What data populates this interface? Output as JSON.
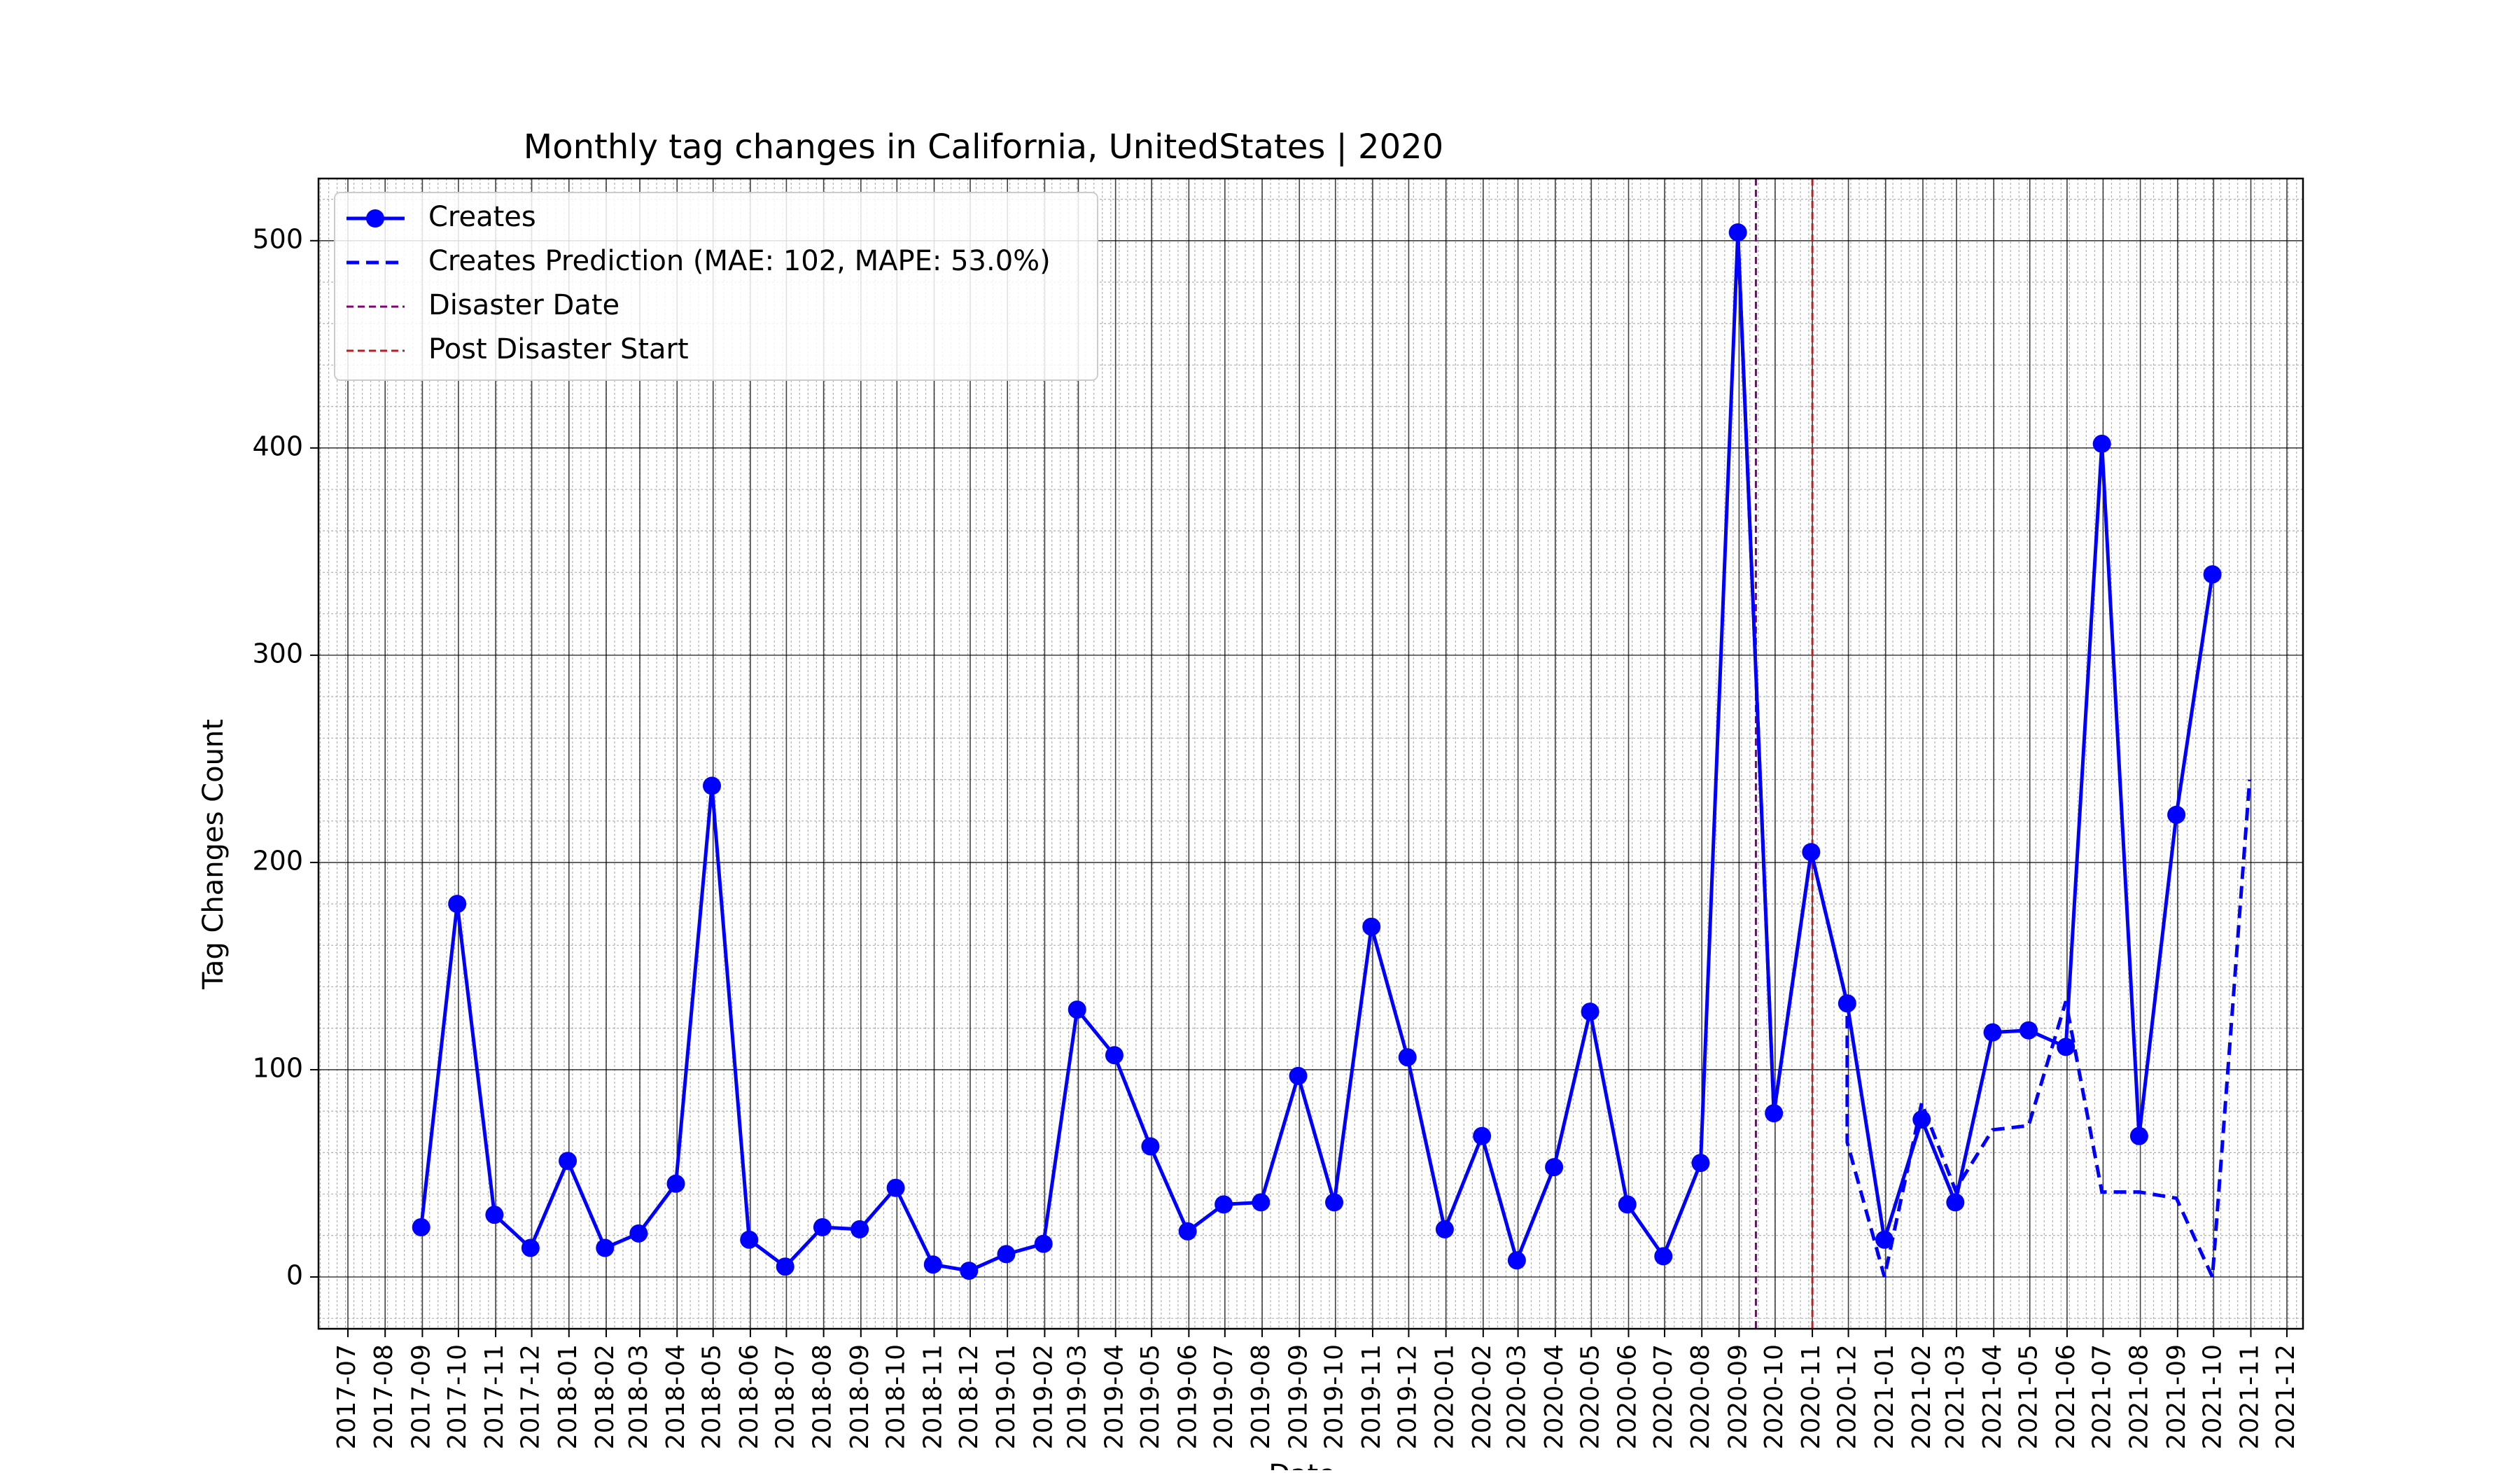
{
  "chart_data": {
    "type": "line",
    "title": "Monthly tag changes in California, UnitedStates | 2020",
    "xlabel": "Date",
    "ylabel": "Tag Changes Count",
    "ylim": [
      -25,
      530
    ],
    "xlim": [
      "2017-07",
      "2021-12"
    ],
    "yticks": [
      0,
      100,
      200,
      300,
      400,
      500
    ],
    "xticks": [
      "2017-07",
      "2017-08",
      "2017-09",
      "2017-10",
      "2017-11",
      "2017-12",
      "2018-01",
      "2018-02",
      "2018-03",
      "2018-04",
      "2018-05",
      "2018-06",
      "2018-07",
      "2018-08",
      "2018-09",
      "2018-10",
      "2018-11",
      "2018-12",
      "2019-01",
      "2019-02",
      "2019-03",
      "2019-04",
      "2019-05",
      "2019-06",
      "2019-07",
      "2019-08",
      "2019-09",
      "2019-10",
      "2019-11",
      "2019-12",
      "2020-01",
      "2020-02",
      "2020-03",
      "2020-04",
      "2020-05",
      "2020-06",
      "2020-07",
      "2020-08",
      "2020-09",
      "2020-10",
      "2020-11",
      "2020-12",
      "2021-01",
      "2021-02",
      "2021-03",
      "2021-04",
      "2021-05",
      "2021-06",
      "2021-07",
      "2021-08",
      "2021-09",
      "2021-10",
      "2021-11",
      "2021-12"
    ],
    "grid": true,
    "legend_position": "top-left",
    "series": [
      {
        "name": "Creates",
        "style": "solid-with-markers",
        "color": "#0000ff",
        "x": [
          "2017-08-31",
          "2017-09-30",
          "2017-10-31",
          "2017-11-30",
          "2017-12-31",
          "2018-01-31",
          "2018-02-28",
          "2018-03-31",
          "2018-04-30",
          "2018-05-31",
          "2018-06-30",
          "2018-07-31",
          "2018-08-31",
          "2018-09-30",
          "2018-10-31",
          "2018-11-30",
          "2018-12-31",
          "2019-01-31",
          "2019-02-28",
          "2019-03-31",
          "2019-04-30",
          "2019-05-31",
          "2019-06-30",
          "2019-07-31",
          "2019-08-31",
          "2019-09-30",
          "2019-10-31",
          "2019-11-30",
          "2019-12-31",
          "2020-01-31",
          "2020-02-29",
          "2020-03-31",
          "2020-04-30",
          "2020-05-31",
          "2020-06-30",
          "2020-07-31",
          "2020-08-31",
          "2020-09-30",
          "2020-10-31",
          "2020-11-30",
          "2020-12-31",
          "2021-01-31",
          "2021-02-28",
          "2021-03-31",
          "2021-04-30",
          "2021-05-31",
          "2021-06-30",
          "2021-07-31",
          "2021-08-31",
          "2021-09-30"
        ],
        "values": [
          24,
          180,
          30,
          14,
          56,
          14,
          21,
          45,
          237,
          18,
          5,
          24,
          23,
          43,
          6,
          3,
          11,
          16,
          129,
          107,
          63,
          22,
          35,
          36,
          97,
          36,
          169,
          106,
          23,
          68,
          8,
          53,
          128,
          35,
          10,
          55,
          504,
          79,
          205,
          132,
          18,
          76,
          36,
          118,
          119,
          111,
          402,
          68,
          223,
          339
        ]
      },
      {
        "name": "Creates Prediction (MAE: 102, MAPE: 53.0%)",
        "style": "dashed",
        "color": "#0000ff",
        "x": [
          "2020-08-31",
          "2020-09-30",
          "2020-10-31",
          "2020-11-30",
          "2020-12-31",
          "2021-01-31",
          "2021-02-28",
          "2021-03-31",
          "2021-04-30",
          "2021-05-31",
          "2021-06-30",
          "2021-07-31",
          "2021-08-31",
          "2021-09-30",
          "2021-10-31"
        ],
        "values": [
          504,
          79,
          205,
          132,
          18,
          76,
          36,
          118,
          119,
          111,
          402,
          68,
          223,
          339,
          null
        ],
        "prediction_x": [
          "2020-11-30",
          "2020-12-31",
          "2021-01-31",
          "2021-02-28",
          "2021-03-31",
          "2021-04-30",
          "2021-05-31",
          "2021-06-30",
          "2021-07-31",
          "2021-08-31",
          "2021-09-30",
          "2021-10-31"
        ],
        "prediction_values": [
          65,
          0,
          84,
          42,
          71,
          73,
          133,
          41,
          41,
          38,
          0,
          240
        ],
        "connect_from_actual": [
          [
            "2020-08-31",
            504
          ],
          [
            "2020-09-30",
            79
          ],
          [
            "2020-10-31",
            205
          ],
          [
            "2020-11-30",
            132
          ]
        ]
      }
    ],
    "vlines": [
      {
        "name": "Disaster Date",
        "x": "2020-09-15",
        "color": "#800080",
        "style": "dashed"
      },
      {
        "name": "Post Disaster Start",
        "x": "2020-11-01",
        "color": "#b22222",
        "style": "dashed"
      }
    ]
  }
}
